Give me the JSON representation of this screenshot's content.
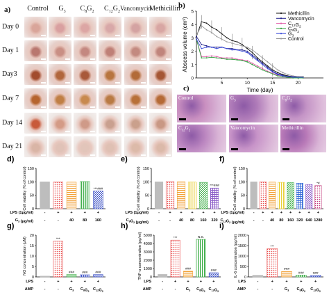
{
  "panel_a": {
    "letter": "a)",
    "columns": [
      "Control",
      "G3",
      "C8G2",
      "C12G2",
      "Vancomycin",
      "Methicillin"
    ],
    "rows": [
      "Day 0",
      "Day 1",
      "Day3",
      "Day 7",
      "Day 14",
      "Day 21"
    ]
  },
  "panel_b": {
    "letter": "b)",
    "chart_data": {
      "type": "line",
      "ylabel": "Abscess volume (cm³)",
      "xlabel": "Time (day)",
      "xlim": [
        0,
        25
      ],
      "ylim": [
        0,
        5
      ],
      "xticks": [
        "5",
        "10",
        "15",
        "20"
      ],
      "yticks": [
        "0",
        "1",
        "2",
        "3",
        "4",
        "5"
      ],
      "x": [
        0,
        1,
        2,
        3,
        4,
        5,
        6,
        7,
        8,
        9,
        10,
        11,
        12,
        13,
        14,
        15,
        16,
        17,
        18,
        19,
        20,
        21
      ],
      "series": [
        {
          "name": "Methicillin",
          "color": "#111111",
          "values": [
            3.1,
            4.2,
            4.1,
            3.8,
            3.6,
            3.3,
            3.0,
            2.8,
            2.7,
            2.5,
            2.2,
            1.9,
            1.5,
            1.2,
            0.9,
            0.6,
            0.4,
            0.25,
            0.15,
            0.1,
            0.1,
            0.1
          ]
        },
        {
          "name": "Vancomycin",
          "color": "#1c1c8a",
          "values": [
            3.1,
            2.5,
            2.4,
            2.3,
            2.3,
            2.3,
            2.2,
            2.2,
            2.1,
            2.1,
            2.0,
            1.7,
            1.4,
            1.1,
            0.8,
            0.5,
            0.3,
            0.2,
            0.1,
            0.1,
            0.05,
            0.05
          ]
        },
        {
          "name": "C12G2",
          "color": "#e05aa8",
          "values": [
            2.9,
            1.6,
            1.6,
            1.65,
            1.6,
            1.5,
            1.5,
            1.5,
            1.4,
            1.35,
            1.3,
            1.1,
            0.9,
            0.7,
            0.5,
            0.35,
            0.2,
            0.1,
            0.05,
            0.05,
            0.0,
            0.0
          ]
        },
        {
          "name": "C8G2",
          "color": "#2e9e3c",
          "values": [
            2.9,
            1.5,
            1.5,
            1.55,
            1.5,
            1.45,
            1.4,
            1.4,
            1.35,
            1.3,
            1.2,
            1.0,
            0.8,
            0.6,
            0.45,
            0.3,
            0.15,
            0.1,
            0.05,
            0.0,
            0.0,
            0.0
          ]
        },
        {
          "name": "G3",
          "color": "#3a4bd8",
          "values": [
            2.9,
            2.2,
            2.3,
            2.3,
            2.2,
            2.3,
            2.2,
            2.1,
            2.1,
            2.0,
            1.9,
            1.6,
            1.3,
            1.0,
            0.7,
            0.45,
            0.25,
            0.15,
            0.1,
            0.05,
            0.05,
            0.05
          ]
        },
        {
          "name": "Control",
          "color": "#9a9a9a",
          "values": [
            3.2,
            3.9,
            3.6,
            3.4,
            3.1,
            2.9,
            2.7,
            2.6,
            2.5,
            2.4,
            2.3,
            2.1,
            1.8,
            1.5,
            1.2,
            0.9,
            0.6,
            0.4,
            0.25,
            0.15,
            0.1,
            0.1
          ]
        }
      ]
    }
  },
  "panel_c": {
    "letter": "c)",
    "tiles": [
      "Control",
      "G3",
      "C8G2",
      "C12G2",
      "Vancomycin",
      "Methicillin"
    ]
  },
  "panel_d": {
    "letter": "d)",
    "chart_data": {
      "type": "bar",
      "ylabel": "Cell viability (% of control)",
      "ylim": [
        0,
        150
      ],
      "yticks": [
        "0",
        "50",
        "100",
        "150"
      ],
      "categories": [
        "-",
        "-",
        "40",
        "80",
        "160"
      ],
      "values": [
        100,
        99,
        99,
        101,
        66
      ],
      "colors": [
        "#bdbdbd",
        "#e94b4b",
        "#f2a33a",
        "#3fae49",
        "#3a4fc4"
      ],
      "annotations": [
        "",
        "",
        "",
        "",
        "***###"
      ],
      "row1_label": "LPS (1μg/ml)",
      "row1_values": [
        "-",
        "+",
        "+",
        "+",
        "+"
      ],
      "row2_label": "G3 (μg/ml)",
      "row2_values": [
        "-",
        "-",
        "40",
        "80",
        "160"
      ]
    }
  },
  "panel_e": {
    "letter": "e)",
    "chart_data": {
      "type": "bar",
      "ylabel": "Cell viability (% of control)",
      "ylim": [
        0,
        150
      ],
      "yticks": [
        "0",
        "50",
        "100",
        "150"
      ],
      "categories": [
        "-",
        "-",
        "40",
        "80",
        "160",
        "320"
      ],
      "values": [
        100,
        101,
        100,
        99,
        98,
        77
      ],
      "colors": [
        "#bdbdbd",
        "#e94b4b",
        "#f2a33a",
        "#e8d03a",
        "#3fae49",
        "#8b5cc7"
      ],
      "annotations": [
        "",
        "",
        "",
        "",
        "",
        "***###"
      ],
      "row1_label": "LPS (1μg/ml)",
      "row1_values": [
        "-",
        "+",
        "+",
        "+",
        "+",
        "+"
      ],
      "row2_label": "C8G2 (μg/ml)",
      "row2_values": [
        "-",
        "-",
        "40",
        "80",
        "160",
        "320"
      ]
    }
  },
  "panel_f": {
    "letter": "f)",
    "chart_data": {
      "type": "bar",
      "ylabel": "Cell viability (% of control)",
      "ylim": [
        0,
        150
      ],
      "yticks": [
        "0",
        "50",
        "100",
        "150"
      ],
      "categories": [
        "-",
        "-",
        "40",
        "80",
        "160",
        "320",
        "640",
        "1280"
      ],
      "values": [
        100,
        100,
        99,
        98,
        97,
        95,
        90,
        86
      ],
      "colors": [
        "#bdbdbd",
        "#e94b4b",
        "#f2a33a",
        "#e8d03a",
        "#3fae49",
        "#3a6fd8",
        "#8b5cc7",
        "#c23a7a"
      ],
      "annotations": [
        "",
        "",
        "",
        "",
        "",
        "",
        "",
        "*#"
      ],
      "row1_label": "LPS (1μg/ml)",
      "row1_values": [
        "-",
        "+",
        "+",
        "+",
        "+",
        "+",
        "+",
        "+"
      ],
      "row2_label": "C12G2 (μg/ml)",
      "row2_values": [
        "-",
        "-",
        "40",
        "80",
        "160",
        "320",
        "640",
        "1280"
      ]
    }
  },
  "panel_g": {
    "letter": "g)",
    "chart_data": {
      "type": "bar",
      "ylabel": "NO concentration (μM)",
      "ylim": [
        0,
        20
      ],
      "yticks": [
        "0",
        "5",
        "10",
        "15",
        "20"
      ],
      "categories": [
        "-",
        "-",
        "G3",
        "C8G2",
        "C12G2"
      ],
      "values": [
        0.4,
        17.2,
        1.2,
        1.0,
        1.1
      ],
      "colors": [
        "#bdbdbd",
        "#e94b4b",
        "#3fae49",
        "#3a4fc4",
        "#3a4fc4"
      ],
      "annotations": [
        "",
        "***",
        "###",
        "###",
        "###"
      ],
      "row1_label": "LPS",
      "row1_values": [
        "-",
        "+",
        "+",
        "+",
        "+"
      ],
      "row2_label": "AMP",
      "row2_values": [
        "-",
        "-",
        "G3",
        "C8G2",
        "C12G2"
      ]
    }
  },
  "panel_h": {
    "letter": "h)",
    "chart_data": {
      "type": "bar",
      "ylabel": "TNF-α concentration (pg/ml)",
      "ylim": [
        0,
        5000
      ],
      "yticks": [
        "0",
        "1000",
        "2000",
        "3000",
        "4000",
        "5000"
      ],
      "categories": [
        "-",
        "-",
        "G3",
        "C8G2",
        "C12G2"
      ],
      "values": [
        300,
        4400,
        700,
        4500,
        500
      ],
      "colors": [
        "#bdbdbd",
        "#e94b4b",
        "#f2a33a",
        "#3fae49",
        "#3a4fc4"
      ],
      "annotations": [
        "",
        "***",
        "###",
        "N.S.",
        "###"
      ],
      "row1_label": "LPS",
      "row1_values": [
        "-",
        "+",
        "+",
        "+",
        "+"
      ],
      "row2_label": "AMP",
      "row2_values": [
        "-",
        "-",
        "G3",
        "C8G2",
        "C12G2"
      ]
    }
  },
  "panel_i": {
    "letter": "i)",
    "chart_data": {
      "type": "bar",
      "ylabel": "IL-6 concentration (pg/ml)",
      "ylim": [
        0,
        2000
      ],
      "yticks": [
        "0",
        "500",
        "1000",
        "1500",
        "2000"
      ],
      "categories": [
        "-",
        "-",
        "G3",
        "C8G2",
        "C12G2"
      ],
      "values": [
        80,
        1350,
        260,
        90,
        70
      ],
      "colors": [
        "#bdbdbd",
        "#e94b4b",
        "#f2a33a",
        "#3fae49",
        "#3a4fc4"
      ],
      "annotations": [
        "",
        "***",
        "###",
        "###",
        "###"
      ],
      "row1_label": "LPS",
      "row1_values": [
        "-",
        "+",
        "+",
        "+",
        "+"
      ],
      "row2_label": "AMP",
      "row2_values": [
        "-",
        "-",
        "G3",
        "C8G2",
        "C12G2"
      ]
    }
  }
}
